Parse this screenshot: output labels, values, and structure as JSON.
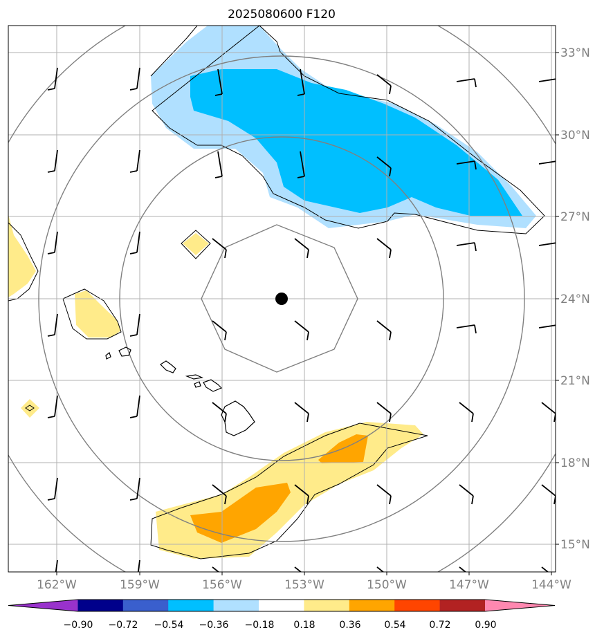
{
  "title": "2025080600 F120",
  "axes": {
    "lon_labels": [
      "162°W",
      "159°W",
      "156°W",
      "153°W",
      "150°W",
      "147°W",
      "144°W"
    ],
    "lat_labels": [
      "33°N",
      "30°N",
      "27°N",
      "24°N",
      "21°N",
      "18°N",
      "15°N"
    ]
  },
  "center_marker": {
    "lon": -153.0,
    "lat": 24.0
  },
  "colorbar": {
    "labels": [
      "−0.90",
      "−0.72",
      "−0.54",
      "−0.36",
      "−0.18",
      "0.18",
      "0.36",
      "0.54",
      "0.72",
      "0.90"
    ],
    "colors": [
      "#9932cc",
      "#00008b",
      "#3a5fcd",
      "#00bfff",
      "#b0e0ff",
      "#ffffff",
      "#ffeb8a",
      "#ffa500",
      "#ff4500",
      "#b22222",
      "#ff88b0"
    ]
  },
  "contour_fill_colors": {
    "light_blue": "#b0e0ff",
    "blue": "#00bfff",
    "light_yellow": "#ffeb8a",
    "orange": "#ffa500"
  },
  "wind_barbs": "black",
  "range_rings": "gray"
}
